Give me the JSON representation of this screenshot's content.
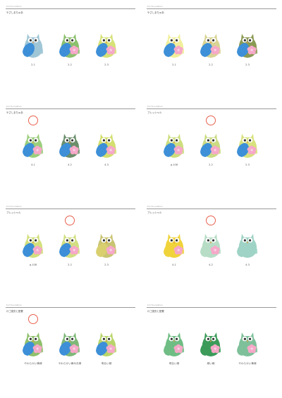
{
  "panels": [
    {
      "tag": "Kid Foundation",
      "heading": "やさしまちゅあ",
      "marker": null,
      "owls": [
        {
          "label": "2.1",
          "body": "#9fc6d6",
          "wing": "#3d8fd7",
          "flower": false
        },
        {
          "label": "2.2",
          "body": "#8cc16e",
          "wing": "#3d8fd7",
          "flower": true
        },
        {
          "label": "2.3",
          "body": "#d6e277",
          "wing": "#3d8fd7",
          "flower": true
        }
      ]
    },
    {
      "tag": "Kid Foundation",
      "heading": "やさしまちゅあ",
      "marker": null,
      "owls": [
        {
          "label": "2.1",
          "body": "#f1ef9a",
          "wing": "#3d8fd7",
          "flower": true
        },
        {
          "label": "2.2",
          "body": "#d9d494",
          "wing": "#3d8fd7",
          "flower": true
        },
        {
          "label": "2.3",
          "body": "#8a9a54",
          "wing": "#3d8fd7",
          "flower": true
        }
      ]
    },
    {
      "tag": "Kid Foundation",
      "heading": "やさしまちゅあ",
      "marker": 0,
      "owls": [
        {
          "label": "4.1",
          "body": "#9bcf7c",
          "wing": "#3d8fd7",
          "flower": true
        },
        {
          "label": "4.2",
          "body": "#6b8f6a",
          "wing": "#3d8fd7",
          "flower": true
        },
        {
          "label": "4.3",
          "body": "#d3df6e",
          "wing": "#3d8fd7",
          "flower": true
        }
      ]
    },
    {
      "tag": "Kid Foundation",
      "heading": "ブレッシャル",
      "marker": 1,
      "owls": [
        {
          "label": "g.108",
          "body": "#cdde7d",
          "wing": "#3d8fd7",
          "flower": true
        },
        {
          "label": "2.2",
          "body": "#cbdb83",
          "wing": "#3d8fd7",
          "flower": true
        },
        {
          "label": "2.3",
          "body": "#d8e27d",
          "wing": "#3d8fd7",
          "flower": true
        }
      ]
    },
    {
      "tag": "Kid Foundation",
      "heading": "ブレッシャル",
      "marker": 1,
      "owls": [
        {
          "label": "g.108",
          "body": "#d3e07c",
          "wing": "#3d8fd7",
          "flower": true
        },
        {
          "label": "2.2",
          "body": "#d2df82",
          "wing": "#3d8fd7",
          "flower": true
        },
        {
          "label": "2.3",
          "body": "#c9c472",
          "wing": "#d9cf6f",
          "flower": true
        }
      ]
    },
    {
      "tag": "Kid Foundation",
      "heading": "ブレッシャル",
      "marker": 1,
      "owls": [
        {
          "label": "4.1",
          "body": "#f0d33a",
          "wing": "#f0d33a",
          "flower": true
        },
        {
          "label": "4.2",
          "body": "#b7ddc6",
          "wing": "#b7ddc6",
          "flower": true
        },
        {
          "label": "4.3",
          "body": "#9ed3c5",
          "wing": "#9ed3c5",
          "flower": false
        }
      ]
    },
    {
      "tag": "Kid Foundation",
      "heading": "ロゴ変形と配置",
      "marker": 0,
      "owls": [
        {
          "label": "やわらかい黄緑",
          "body": "#8fc06b",
          "wing": "#3d8fd7",
          "flower": true
        },
        {
          "label": "やわらかい黄みお緑",
          "body": "#7fb878",
          "wing": "#3d8fd7",
          "flower": true
        },
        {
          "label": "明るい緑",
          "body": "#b9d56a",
          "wing": "#3d8fd7",
          "flower": true
        }
      ]
    },
    {
      "tag": "Kid Foundation",
      "heading": "ロゴ変形と配置",
      "marker": null,
      "owls": [
        {
          "label": "明るい緑",
          "body": "#6fbd84",
          "wing": "#6fbd84",
          "flower": true
        },
        {
          "label": "緑い緑",
          "body": "#3c9b59",
          "wing": "#3c9b59",
          "flower": true
        },
        {
          "label": "やわらかい黄緑",
          "body": "#7ec09a",
          "wing": "#7ec09a",
          "flower": true
        }
      ]
    }
  ]
}
